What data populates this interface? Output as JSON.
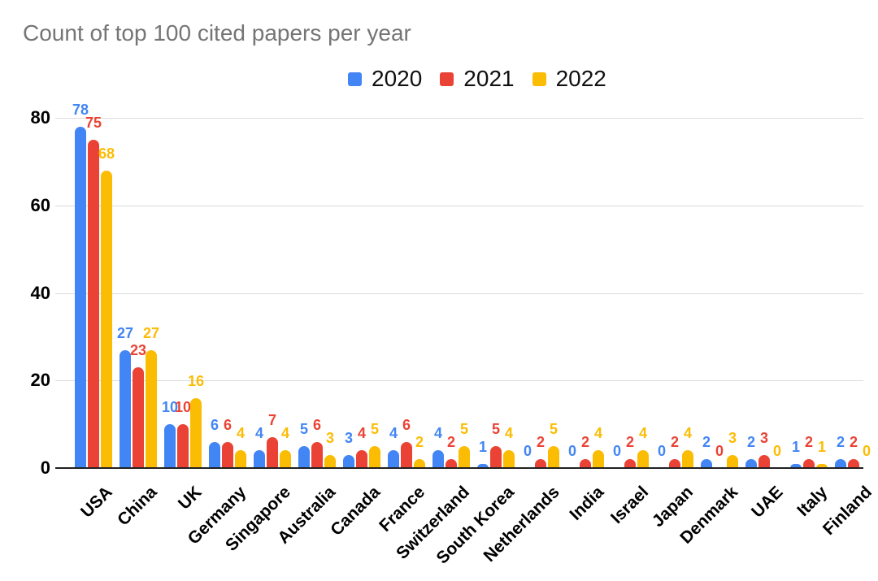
{
  "chart_data": {
    "type": "bar",
    "title": "Count of top 100 cited papers per year",
    "title_color": "#757575",
    "categories": [
      "USA",
      "China",
      "UK",
      "Germany",
      "Singapore",
      "Australia",
      "Canada",
      "France",
      "Switzerland",
      "South Korea",
      "Netherlands",
      "India",
      "Israel",
      "Japan",
      "Denmark",
      "UAE",
      "Italy",
      "Finland"
    ],
    "series": [
      {
        "name": "2020",
        "color": "#4285F4",
        "values": [
          78,
          27,
          10,
          6,
          4,
          5,
          3,
          4,
          4,
          1,
          0,
          0,
          0,
          0,
          2,
          2,
          1,
          2
        ]
      },
      {
        "name": "2021",
        "color": "#EA4335",
        "values": [
          75,
          23,
          10,
          6,
          7,
          6,
          4,
          6,
          2,
          5,
          2,
          2,
          2,
          2,
          0,
          3,
          2,
          2
        ]
      },
      {
        "name": "2022",
        "color": "#FBBC04",
        "values": [
          68,
          27,
          16,
          4,
          4,
          3,
          5,
          2,
          5,
          4,
          5,
          4,
          4,
          4,
          3,
          0,
          1,
          0
        ]
      }
    ],
    "xlabel": "",
    "ylabel": "",
    "ylim": [
      0,
      80
    ],
    "yticks": [
      0,
      20,
      40,
      60,
      80
    ],
    "grid": true,
    "legend_position": "top",
    "value_labels_shown": true,
    "x_tick_rotation_deg": -45
  }
}
